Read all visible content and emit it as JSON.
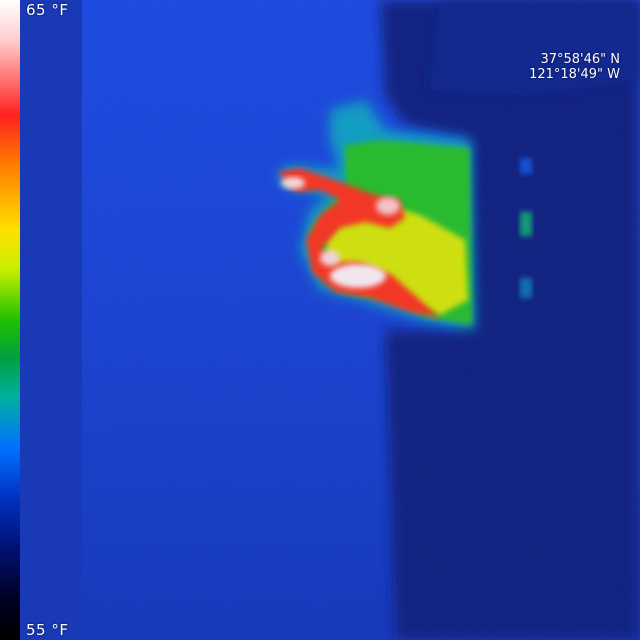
{
  "scale": {
    "max_label": "65 °F",
    "min_label": "55 °F"
  },
  "location": {
    "latitude": "37°58'46\" N",
    "longitude": "121°18'49\" W"
  }
}
